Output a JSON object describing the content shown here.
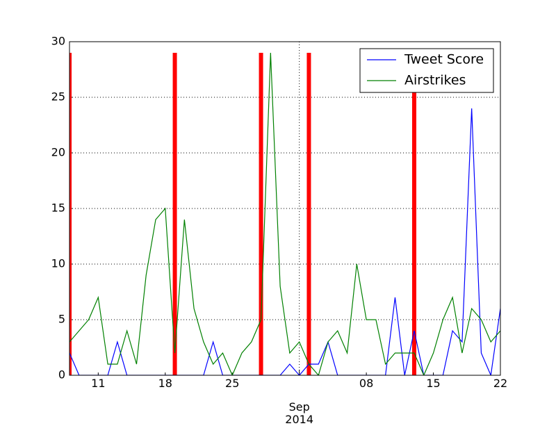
{
  "chart_data": {
    "type": "line",
    "x": [
      "2014-08-08",
      "2014-08-09",
      "2014-08-10",
      "2014-08-11",
      "2014-08-12",
      "2014-08-13",
      "2014-08-14",
      "2014-08-15",
      "2014-08-16",
      "2014-08-17",
      "2014-08-18",
      "2014-08-19",
      "2014-08-20",
      "2014-08-21",
      "2014-08-22",
      "2014-08-23",
      "2014-08-24",
      "2014-08-25",
      "2014-08-26",
      "2014-08-27",
      "2014-08-28",
      "2014-08-29",
      "2014-08-30",
      "2014-08-31",
      "2014-09-01",
      "2014-09-02",
      "2014-09-03",
      "2014-09-04",
      "2014-09-05",
      "2014-09-06",
      "2014-09-07",
      "2014-09-08",
      "2014-09-09",
      "2014-09-10",
      "2014-09-11",
      "2014-09-12",
      "2014-09-13",
      "2014-09-14",
      "2014-09-15",
      "2014-09-16",
      "2014-09-17",
      "2014-09-18",
      "2014-09-19",
      "2014-09-20",
      "2014-09-21",
      "2014-09-22"
    ],
    "series": [
      {
        "name": "Tweet Score",
        "color": "#0000ff",
        "values": [
          2,
          0,
          0,
          0,
          0,
          3,
          0,
          0,
          0,
          0,
          0,
          0,
          0,
          0,
          0,
          3,
          0,
          0,
          0,
          0,
          0,
          0,
          0,
          1,
          0,
          1,
          1,
          3,
          0,
          0,
          0,
          0,
          0,
          0,
          7,
          0,
          4,
          0,
          0,
          0,
          4,
          3,
          24,
          2,
          0,
          6
        ]
      },
      {
        "name": "Airstrikes",
        "color": "#008000",
        "values": [
          3,
          4,
          5,
          7,
          1,
          1,
          4,
          1,
          9,
          14,
          15,
          2,
          14,
          6,
          3,
          1,
          2,
          0,
          2,
          3,
          5,
          29,
          8,
          2,
          3,
          1,
          0,
          3,
          4,
          2,
          10,
          5,
          5,
          1,
          2,
          2,
          2,
          0,
          2,
          5,
          7,
          2,
          6,
          5,
          3,
          4
        ]
      }
    ],
    "bars": {
      "color": "#ff0000",
      "x": [
        "2014-08-08",
        "2014-08-19",
        "2014-08-28",
        "2014-09-02",
        "2014-09-13"
      ],
      "values": [
        29,
        29,
        29,
        29,
        29
      ]
    },
    "xlim": [
      "2014-08-08",
      "2014-09-22"
    ],
    "xticks": [
      {
        "value": "2014-08-11",
        "label": "11"
      },
      {
        "value": "2014-08-18",
        "label": "18"
      },
      {
        "value": "2014-08-25",
        "label": "25"
      },
      {
        "value": "2014-09-01",
        "label": "Sep\n2014"
      },
      {
        "value": "2014-09-08",
        "label": "08"
      },
      {
        "value": "2014-09-15",
        "label": "15"
      },
      {
        "value": "2014-09-22",
        "label": "22"
      }
    ],
    "ylim": [
      0,
      30
    ],
    "yticks": [
      0,
      5,
      10,
      15,
      20,
      25,
      30
    ],
    "grid": true,
    "legend": "upper right"
  }
}
